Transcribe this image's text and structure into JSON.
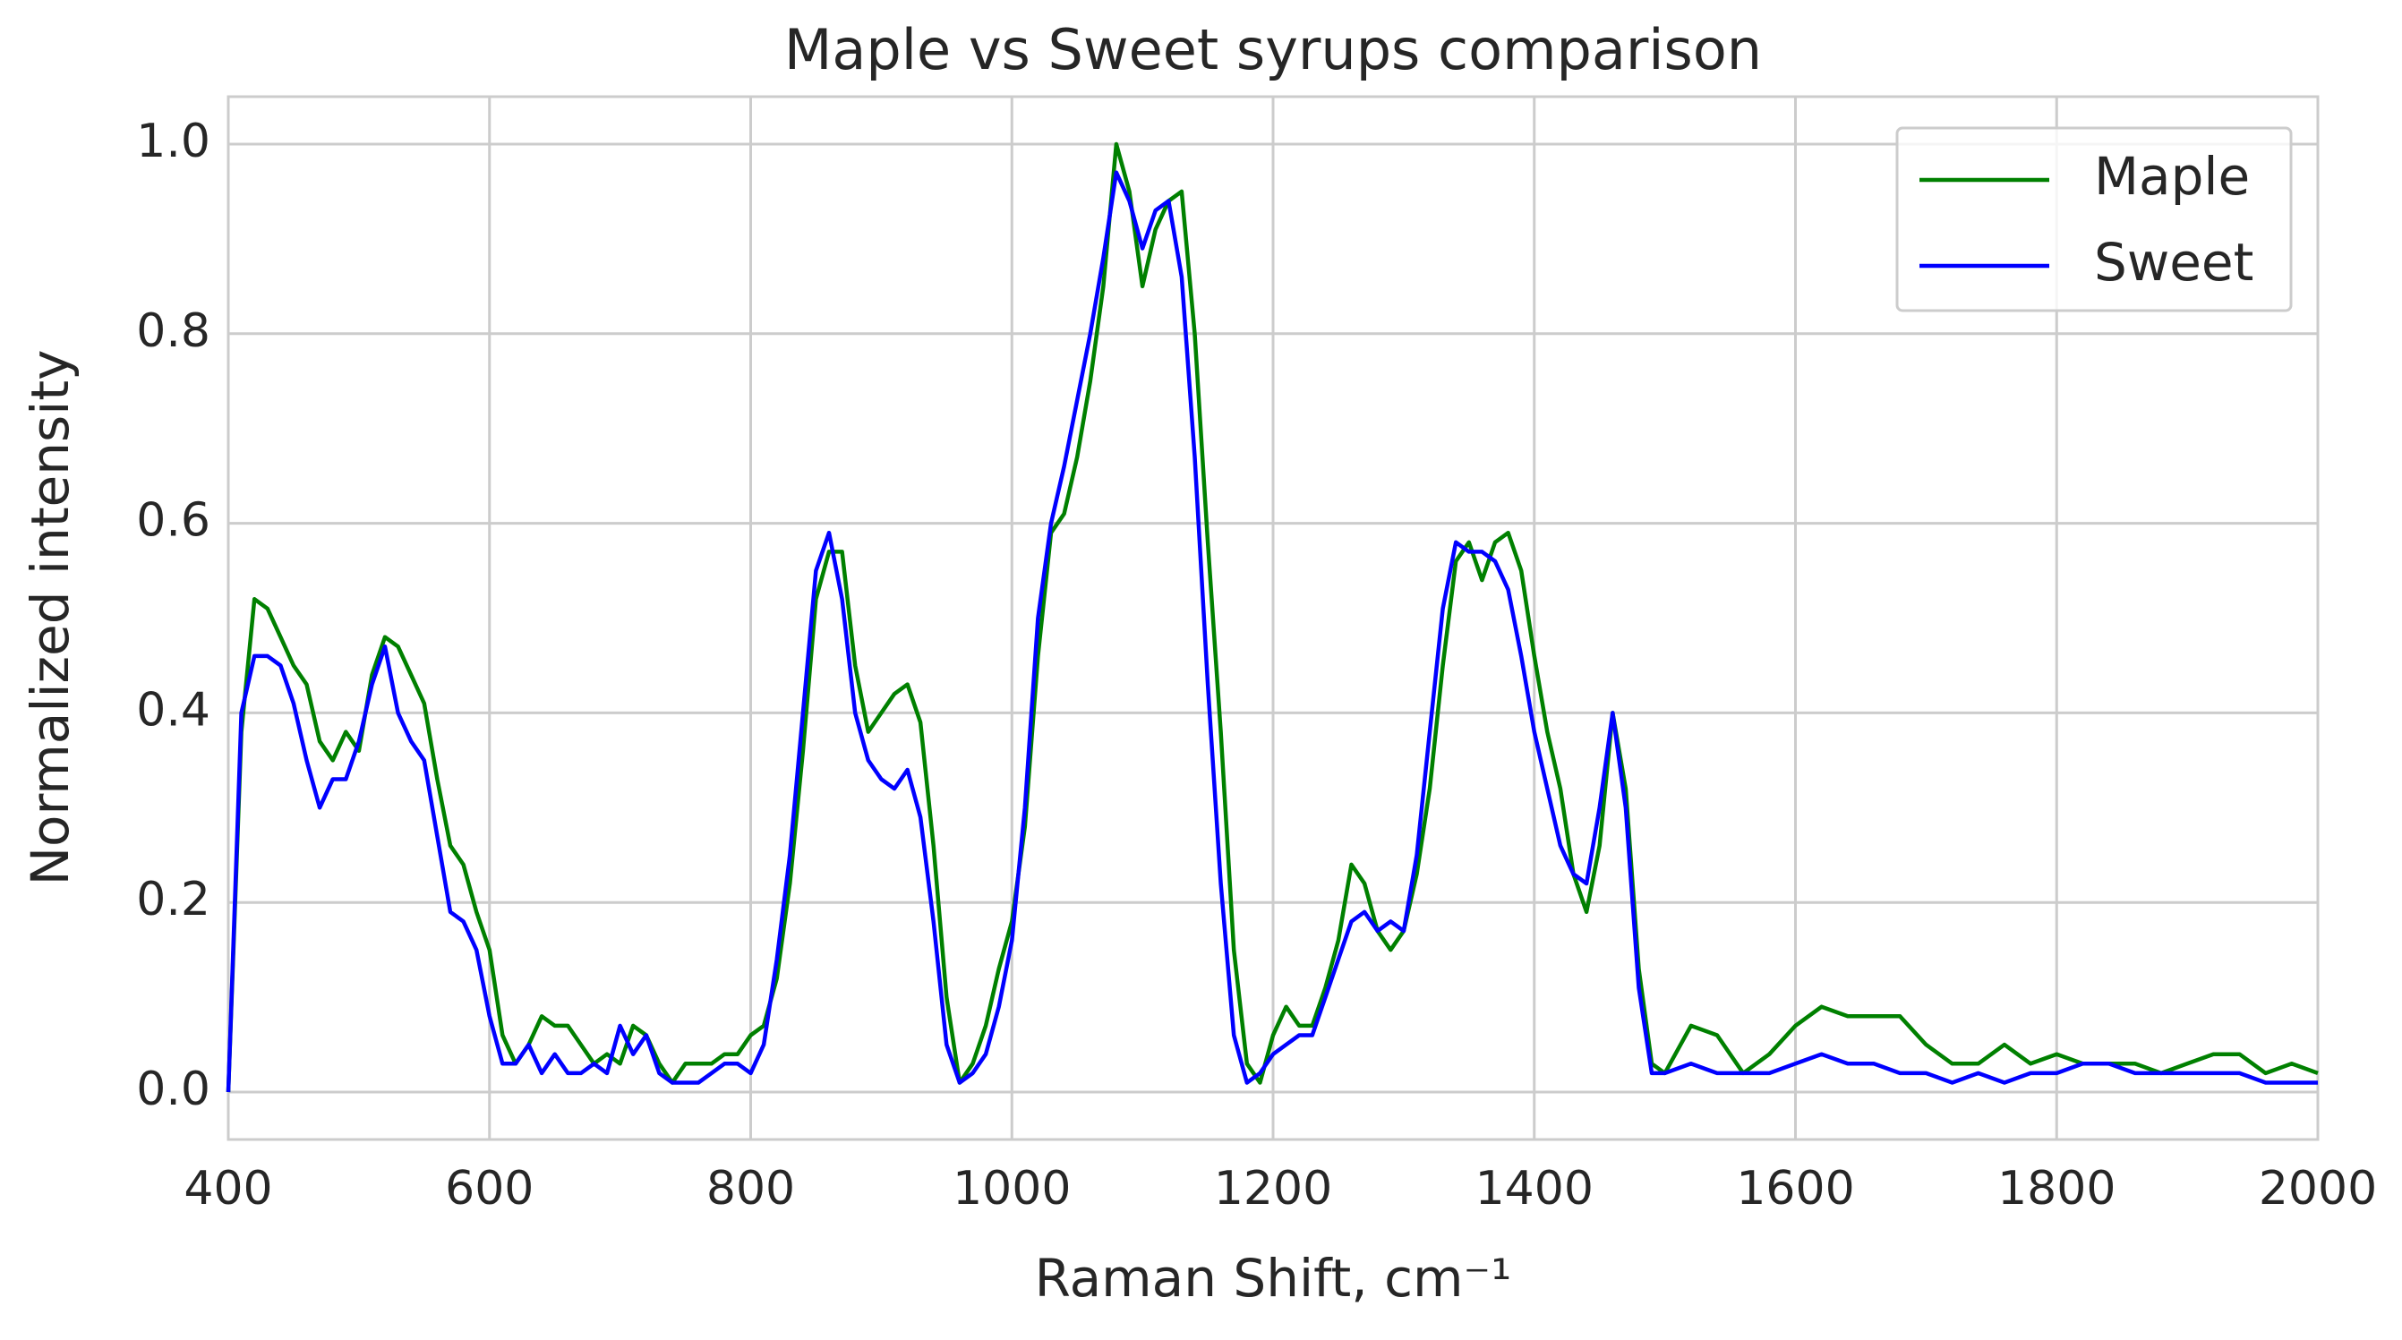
{
  "chart_data": {
    "type": "line",
    "title": "Maple vs Sweet syrups comparison",
    "xlabel": "Raman Shift, cm⁻¹",
    "ylabel": "Normalized intensity",
    "xlim": [
      400,
      2000
    ],
    "xticks": [
      400,
      600,
      800,
      1000,
      1200,
      1400,
      1600,
      1800,
      2000
    ],
    "ylim": [
      -0.05,
      1.05
    ],
    "yticks": [
      {
        "value": 0,
        "label": "0.0"
      },
      0.2,
      0.4,
      0.6,
      0.8,
      {
        "value": 1,
        "label": "1.0"
      }
    ],
    "grid": true,
    "legend": "upper right",
    "x": [
      400,
      410,
      420,
      430,
      440,
      450,
      460,
      470,
      480,
      490,
      500,
      510,
      520,
      530,
      540,
      550,
      560,
      570,
      580,
      590,
      600,
      610,
      620,
      630,
      640,
      650,
      660,
      670,
      680,
      690,
      700,
      710,
      720,
      730,
      740,
      750,
      760,
      770,
      780,
      790,
      800,
      810,
      820,
      830,
      840,
      850,
      860,
      870,
      880,
      890,
      900,
      910,
      920,
      930,
      940,
      950,
      960,
      970,
      980,
      990,
      1000,
      1010,
      1020,
      1030,
      1040,
      1050,
      1060,
      1070,
      1080,
      1090,
      1100,
      1110,
      1120,
      1130,
      1140,
      1150,
      1160,
      1170,
      1180,
      1190,
      1200,
      1210,
      1220,
      1230,
      1240,
      1250,
      1260,
      1270,
      1280,
      1290,
      1300,
      1310,
      1320,
      1330,
      1340,
      1350,
      1360,
      1370,
      1380,
      1390,
      1400,
      1410,
      1420,
      1430,
      1440,
      1450,
      1460,
      1470,
      1480,
      1490,
      1500,
      1520,
      1540,
      1560,
      1580,
      1600,
      1620,
      1640,
      1660,
      1680,
      1700,
      1720,
      1740,
      1760,
      1780,
      1800,
      1820,
      1840,
      1860,
      1880,
      1900,
      1920,
      1940,
      1960,
      1980,
      2000
    ],
    "series": [
      {
        "name": "Maple",
        "color": "#008000",
        "values": [
          0.0,
          0.38,
          0.52,
          0.51,
          0.48,
          0.45,
          0.43,
          0.37,
          0.35,
          0.38,
          0.36,
          0.44,
          0.48,
          0.47,
          0.44,
          0.41,
          0.33,
          0.26,
          0.24,
          0.19,
          0.15,
          0.06,
          0.03,
          0.05,
          0.08,
          0.07,
          0.07,
          0.05,
          0.03,
          0.04,
          0.03,
          0.07,
          0.06,
          0.03,
          0.01,
          0.03,
          0.03,
          0.03,
          0.04,
          0.04,
          0.06,
          0.07,
          0.12,
          0.22,
          0.36,
          0.52,
          0.57,
          0.57,
          0.45,
          0.38,
          0.4,
          0.42,
          0.43,
          0.39,
          0.26,
          0.1,
          0.01,
          0.03,
          0.07,
          0.13,
          0.18,
          0.28,
          0.46,
          0.59,
          0.61,
          0.67,
          0.75,
          0.85,
          1.0,
          0.95,
          0.85,
          0.91,
          0.94,
          0.95,
          0.8,
          0.58,
          0.38,
          0.15,
          0.03,
          0.01,
          0.06,
          0.09,
          0.07,
          0.07,
          0.11,
          0.16,
          0.24,
          0.22,
          0.17,
          0.15,
          0.17,
          0.23,
          0.32,
          0.45,
          0.56,
          0.58,
          0.54,
          0.58,
          0.59,
          0.55,
          0.46,
          0.38,
          0.32,
          0.23,
          0.19,
          0.26,
          0.4,
          0.32,
          0.13,
          0.03,
          0.02,
          0.07,
          0.06,
          0.02,
          0.04,
          0.07,
          0.09,
          0.08,
          0.08,
          0.08,
          0.05,
          0.03,
          0.03,
          0.05,
          0.03,
          0.04,
          0.03,
          0.03,
          0.03,
          0.02,
          0.03,
          0.04,
          0.04,
          0.02,
          0.03,
          0.02
        ]
      },
      {
        "name": "Sweet",
        "color": "#0000ff",
        "values": [
          0.0,
          0.4,
          0.46,
          0.46,
          0.45,
          0.41,
          0.35,
          0.3,
          0.33,
          0.33,
          0.37,
          0.43,
          0.47,
          0.4,
          0.37,
          0.35,
          0.27,
          0.19,
          0.18,
          0.15,
          0.08,
          0.03,
          0.03,
          0.05,
          0.02,
          0.04,
          0.02,
          0.02,
          0.03,
          0.02,
          0.07,
          0.04,
          0.06,
          0.02,
          0.01,
          0.01,
          0.01,
          0.02,
          0.03,
          0.03,
          0.02,
          0.05,
          0.14,
          0.25,
          0.4,
          0.55,
          0.59,
          0.52,
          0.4,
          0.35,
          0.33,
          0.32,
          0.34,
          0.29,
          0.18,
          0.05,
          0.01,
          0.02,
          0.04,
          0.09,
          0.16,
          0.3,
          0.5,
          0.6,
          0.66,
          0.73,
          0.8,
          0.88,
          0.97,
          0.94,
          0.89,
          0.93,
          0.94,
          0.86,
          0.67,
          0.43,
          0.22,
          0.06,
          0.01,
          0.02,
          0.04,
          0.05,
          0.06,
          0.06,
          0.1,
          0.14,
          0.18,
          0.19,
          0.17,
          0.18,
          0.17,
          0.25,
          0.38,
          0.51,
          0.58,
          0.57,
          0.57,
          0.56,
          0.53,
          0.46,
          0.38,
          0.32,
          0.26,
          0.23,
          0.22,
          0.3,
          0.4,
          0.3,
          0.11,
          0.02,
          0.02,
          0.03,
          0.02,
          0.02,
          0.02,
          0.03,
          0.04,
          0.03,
          0.03,
          0.02,
          0.02,
          0.01,
          0.02,
          0.01,
          0.02,
          0.02,
          0.03,
          0.03,
          0.02,
          0.02,
          0.02,
          0.02,
          0.02,
          0.01,
          0.01,
          0.01
        ]
      }
    ]
  }
}
